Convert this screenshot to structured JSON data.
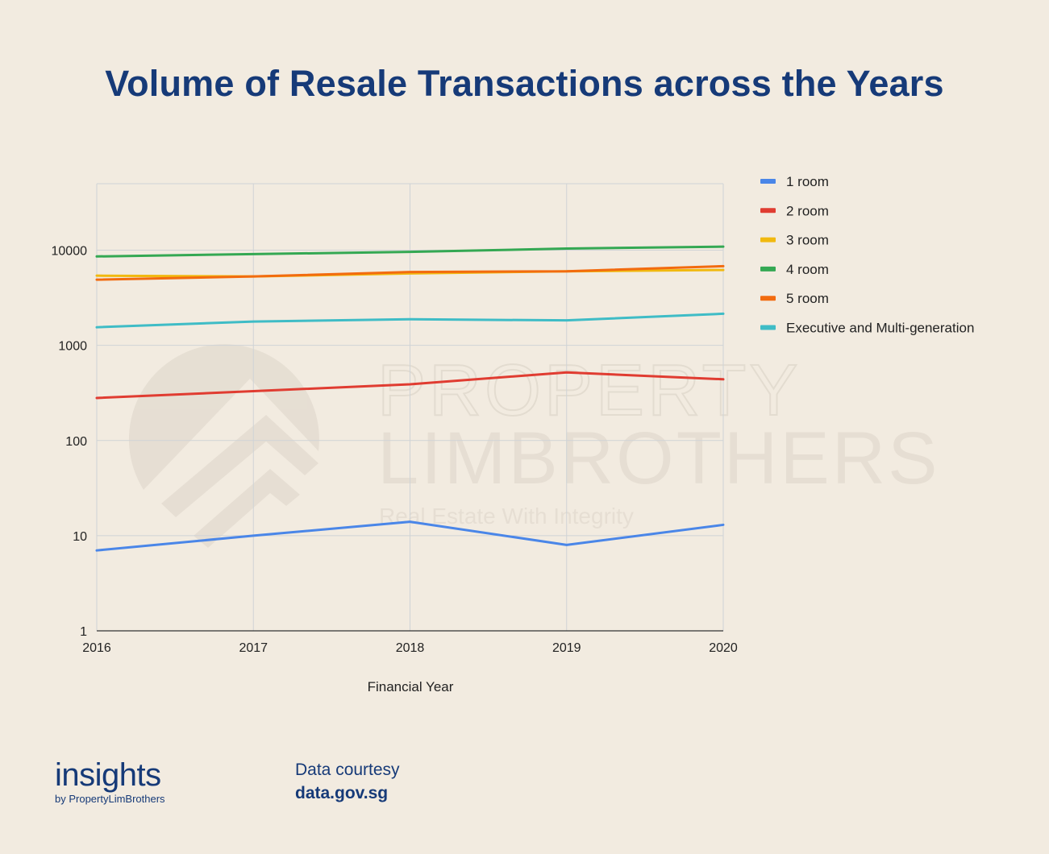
{
  "title": "Volume of Resale Transactions across the Years",
  "watermark": {
    "line1": "PROPERTY",
    "line2": "LIMBROTHERS",
    "tagline": "Real Estate With Integrity"
  },
  "chart_data": {
    "type": "line",
    "title": "Volume of Resale Transactions across the Years",
    "xlabel": "Financial Year",
    "ylabel": "",
    "yscale": "log",
    "ylim": [
      1,
      50000
    ],
    "yticks": [
      "1",
      "10",
      "100",
      "1000",
      "10000"
    ],
    "ytick_values": [
      1,
      10,
      100,
      1000,
      10000
    ],
    "x": [
      "2016",
      "2017",
      "2018",
      "2019",
      "2020"
    ],
    "grid": true,
    "legend_position": "right",
    "series": [
      {
        "name": "1 room",
        "color": "#4a86e8",
        "values": [
          7,
          10,
          14,
          8,
          13
        ]
      },
      {
        "name": "2 room",
        "color": "#e03c31",
        "values": [
          280,
          330,
          390,
          520,
          440
        ]
      },
      {
        "name": "3 room",
        "color": "#f1b90f",
        "values": [
          5400,
          5300,
          5700,
          6000,
          6200
        ]
      },
      {
        "name": "4 room",
        "color": "#34a853",
        "values": [
          8600,
          9100,
          9600,
          10400,
          10900
        ]
      },
      {
        "name": "5 room",
        "color": "#f26b0f",
        "values": [
          4900,
          5300,
          5900,
          6000,
          6800
        ]
      },
      {
        "name": "Executive and Multi-generation",
        "color": "#3fbcc6",
        "values": [
          1550,
          1780,
          1880,
          1830,
          2150
        ]
      }
    ]
  },
  "footer": {
    "logo_word": "insights",
    "logo_sub": "by PropertyLimBrothers",
    "courtesy_label": "Data courtesy",
    "courtesy_source": "data.gov.sg"
  }
}
